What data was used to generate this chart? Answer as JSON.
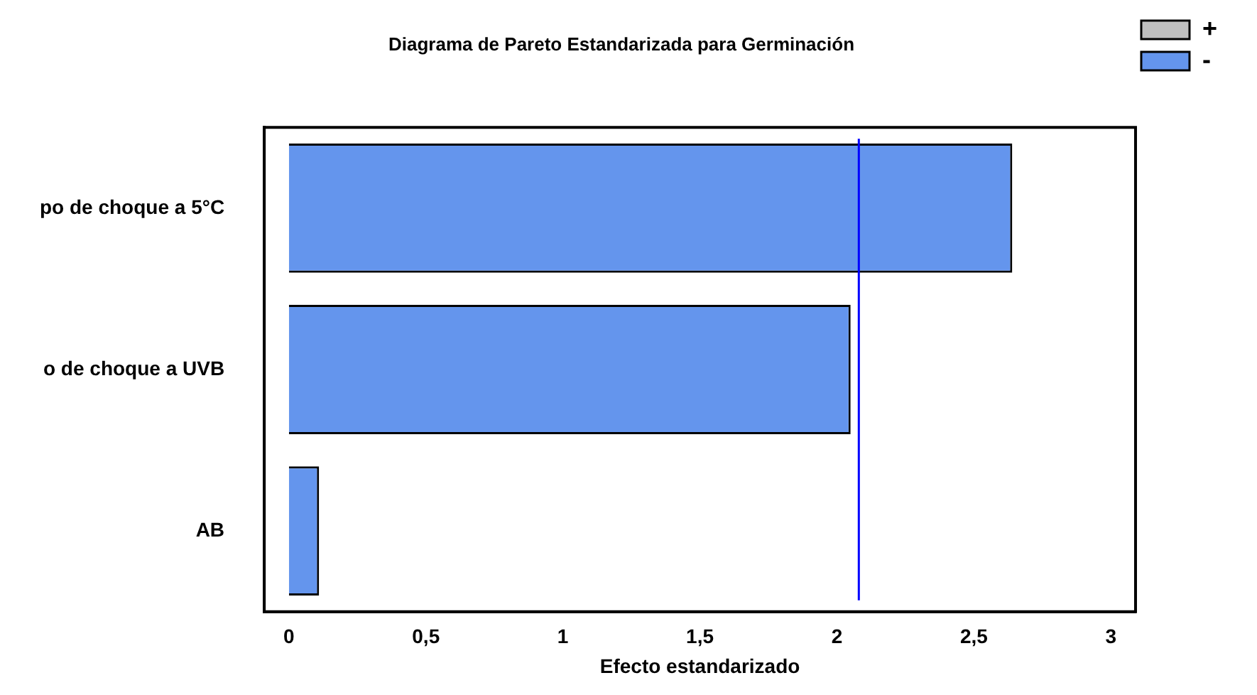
{
  "chart_data": {
    "type": "bar",
    "orientation": "horizontal",
    "title": "Diagrama de Pareto Estandarizada para Germinación",
    "xlabel": "Efecto estandarizado",
    "categories": [
      "po de choque a 5°C",
      "o de choque a UVB",
      "AB"
    ],
    "series": [
      {
        "name": "+",
        "color": "#c0c0c0",
        "values": [
          null,
          null,
          null
        ]
      },
      {
        "name": "-",
        "color": "#6495ed",
        "values": [
          2.64,
          2.05,
          0.11
        ]
      }
    ],
    "xlim": [
      -0.09,
      3.09
    ],
    "xticks": [
      0,
      {
        "value": 0.5,
        "label": "0,5"
      },
      1,
      {
        "value": 1.5,
        "label": "1,5"
      },
      2,
      {
        "value": 2.5,
        "label": "2,5"
      },
      3
    ],
    "ref_lines": [
      {
        "axis": "x",
        "value": 2.08,
        "color": "#0000ff"
      }
    ],
    "grid": false,
    "legend": "top right"
  }
}
